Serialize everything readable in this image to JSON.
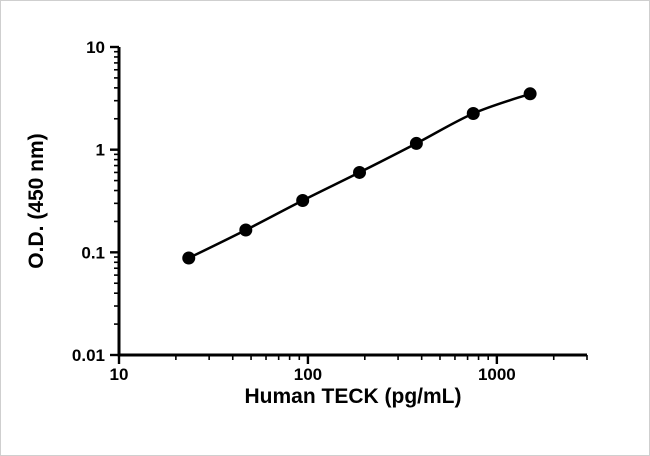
{
  "chart_data": {
    "type": "line",
    "title": "",
    "xlabel": "Human TECK (pg/mL)",
    "ylabel": "O.D. (450 nm)",
    "x_scale": "log",
    "y_scale": "log",
    "xlim": [
      10,
      3000
    ],
    "ylim": [
      0.01,
      10
    ],
    "x_ticks": [
      "10",
      "100",
      "1000"
    ],
    "y_ticks": [
      "0.01",
      "0.1",
      "1",
      "10"
    ],
    "grid": false,
    "legend": null,
    "line_color": "#000000",
    "marker": {
      "shape": "circle",
      "size": 6.5,
      "color": "#000000"
    },
    "points": [
      {
        "x": 23.4,
        "y": 0.088
      },
      {
        "x": 46.9,
        "y": 0.165
      },
      {
        "x": 93.8,
        "y": 0.32
      },
      {
        "x": 187.5,
        "y": 0.6
      },
      {
        "x": 375,
        "y": 1.15
      },
      {
        "x": 750,
        "y": 2.25
      },
      {
        "x": 1500,
        "y": 3.5
      }
    ]
  }
}
